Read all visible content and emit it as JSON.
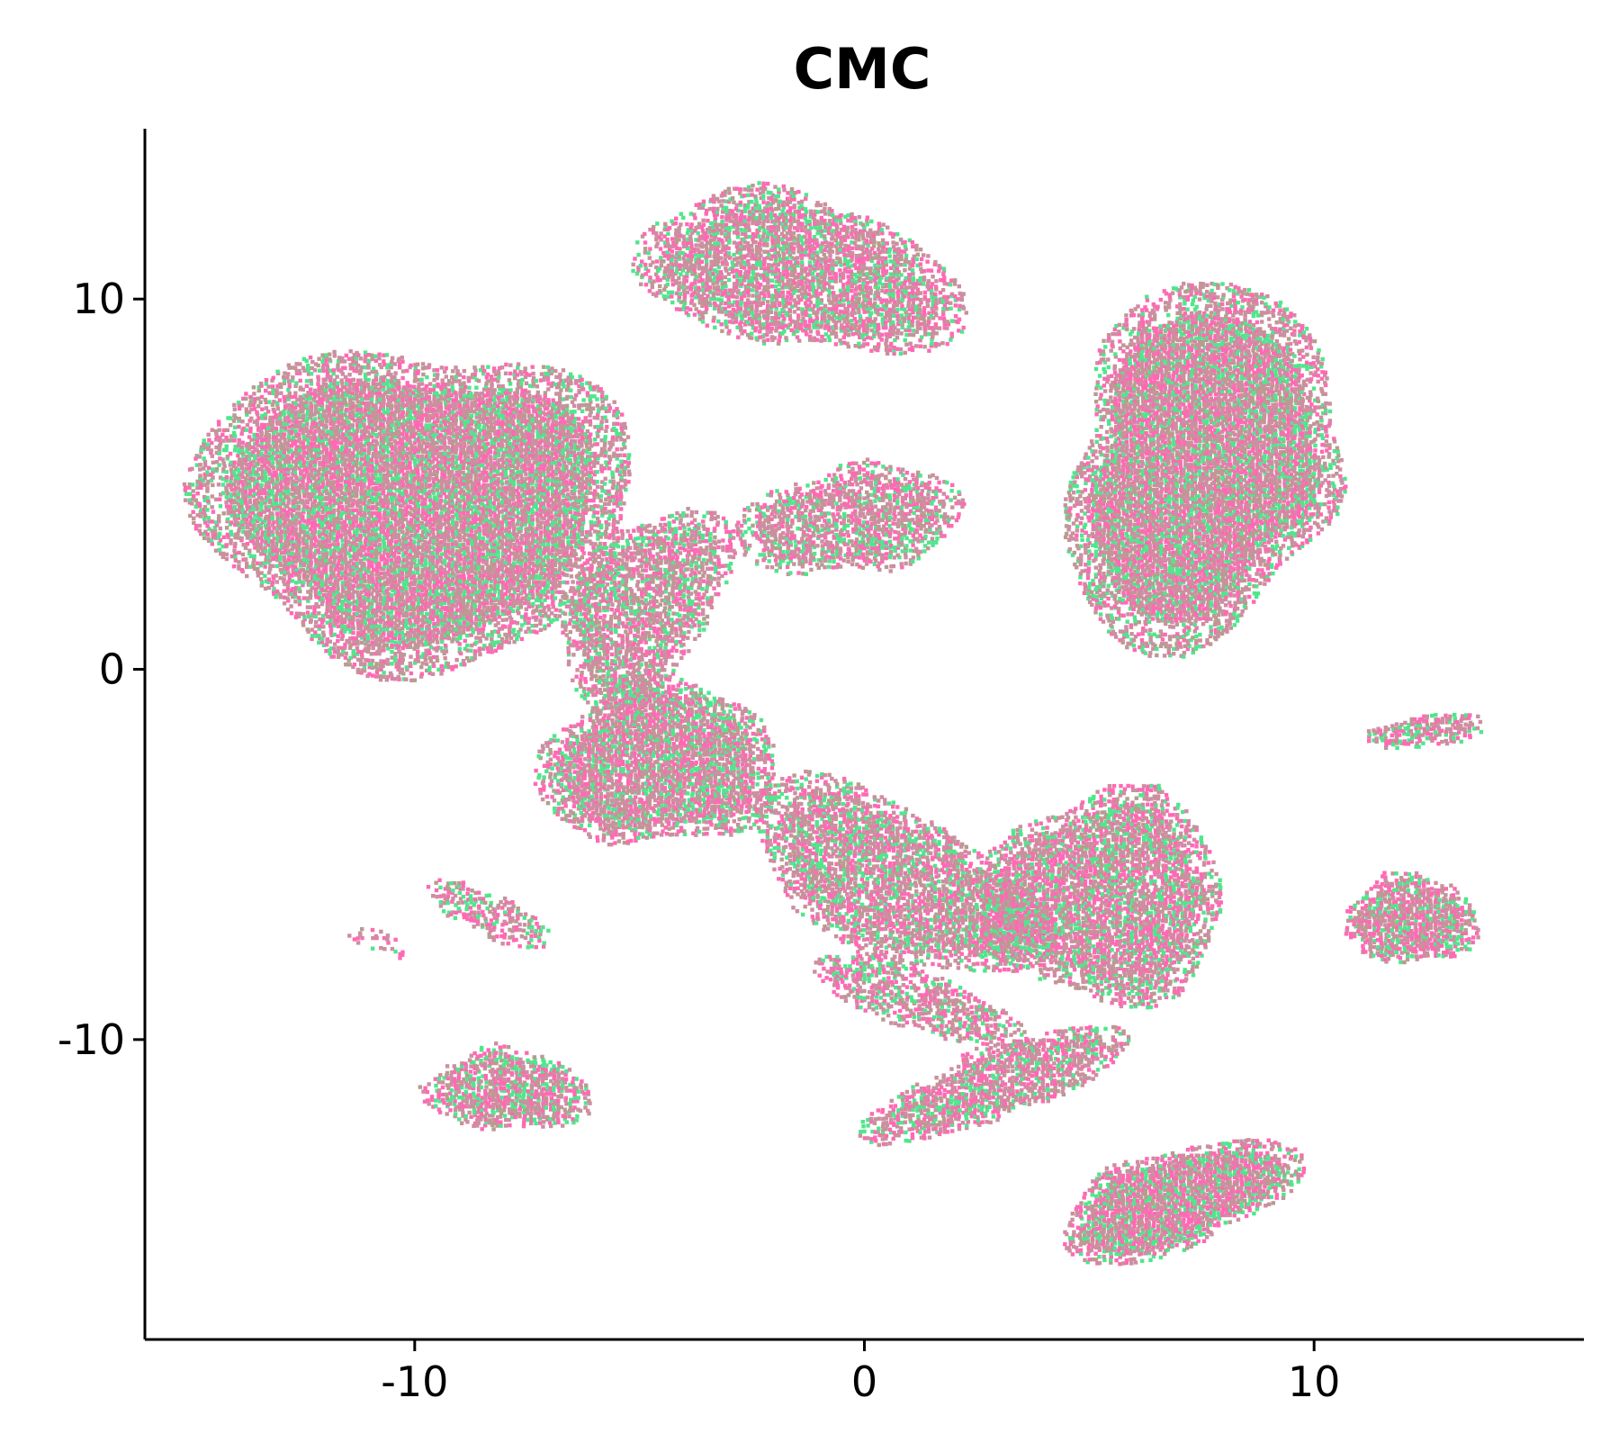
{
  "chart_data": {
    "type": "scatter",
    "title": "CMC",
    "xlabel": "",
    "ylabel": "",
    "xlim": [
      -16,
      16
    ],
    "ylim": [
      -18.1,
      14.6
    ],
    "xticks": [
      -10,
      0,
      10
    ],
    "xtick_labels": [
      "-10",
      "0",
      "10"
    ],
    "yticks": [
      10,
      0,
      -10
    ],
    "ytick_labels": [
      "10",
      "0",
      "-10"
    ],
    "grid": false,
    "legend": "none",
    "colors": {
      "pink": "#ff69b4",
      "green": "#50e68c",
      "mix": "#cc8fa0",
      "mix_alt": "#b79c8f"
    },
    "clusters": [
      {
        "cx": -10.0,
        "cy": 4.5,
        "rx": 4.9,
        "ry": 4.3,
        "rot": -6,
        "pink_share": 0.45,
        "density": 1.0
      },
      {
        "cx": -5.0,
        "cy": 1.8,
        "rx": 1.6,
        "ry": 2.9,
        "rot": -25,
        "pink_share": 0.45,
        "density": 0.8
      },
      {
        "cx": -1.6,
        "cy": 10.8,
        "rx": 3.8,
        "ry": 2.0,
        "rot": -15,
        "pink_share": 0.55,
        "density": 0.85
      },
      {
        "cx": -0.3,
        "cy": 4.1,
        "rx": 2.6,
        "ry": 1.4,
        "rot": 12,
        "pink_share": 0.5,
        "density": 0.8
      },
      {
        "cx": 7.5,
        "cy": 5.6,
        "rx": 2.9,
        "ry": 5.1,
        "rot": -10,
        "pink_share": 0.45,
        "density": 1.0
      },
      {
        "cx": -4.6,
        "cy": -2.5,
        "rx": 2.7,
        "ry": 2.2,
        "rot": 8,
        "pink_share": 0.5,
        "density": 0.95
      },
      {
        "cx": 0.6,
        "cy": -5.7,
        "rx": 3.8,
        "ry": 1.9,
        "rot": -35,
        "pink_share": 0.5,
        "density": 0.85
      },
      {
        "cx": 1.0,
        "cy": -8.8,
        "rx": 2.6,
        "ry": 0.8,
        "rot": -25,
        "pink_share": 0.6,
        "density": 0.7
      },
      {
        "cx": 5.3,
        "cy": -6.1,
        "rx": 2.7,
        "ry": 2.9,
        "rot": -8,
        "pink_share": 0.55,
        "density": 0.9
      },
      {
        "cx": 2.9,
        "cy": -11.1,
        "rx": 3.3,
        "ry": 0.9,
        "rot": 25,
        "pink_share": 0.5,
        "density": 0.85
      },
      {
        "cx": 6.8,
        "cy": -14.3,
        "rx": 2.9,
        "ry": 1.3,
        "rot": 25,
        "pink_share": 0.55,
        "density": 1.0
      },
      {
        "cx": 12.1,
        "cy": -6.7,
        "rx": 1.5,
        "ry": 1.2,
        "rot": 0,
        "pink_share": 0.55,
        "density": 0.95
      },
      {
        "cx": 12.5,
        "cy": -1.6,
        "rx": 1.4,
        "ry": 0.45,
        "rot": 10,
        "pink_share": 0.6,
        "density": 0.8
      },
      {
        "cx": -8.0,
        "cy": -11.3,
        "rx": 1.9,
        "ry": 1.1,
        "rot": -5,
        "pink_share": 0.55,
        "density": 0.85
      },
      {
        "cx": -8.3,
        "cy": -6.6,
        "rx": 1.6,
        "ry": 0.55,
        "rot": -30,
        "pink_share": 0.65,
        "density": 0.6
      },
      {
        "cx": -10.8,
        "cy": -7.3,
        "rx": 0.9,
        "ry": 0.3,
        "rot": -20,
        "pink_share": 0.6,
        "density": 0.3
      }
    ]
  }
}
